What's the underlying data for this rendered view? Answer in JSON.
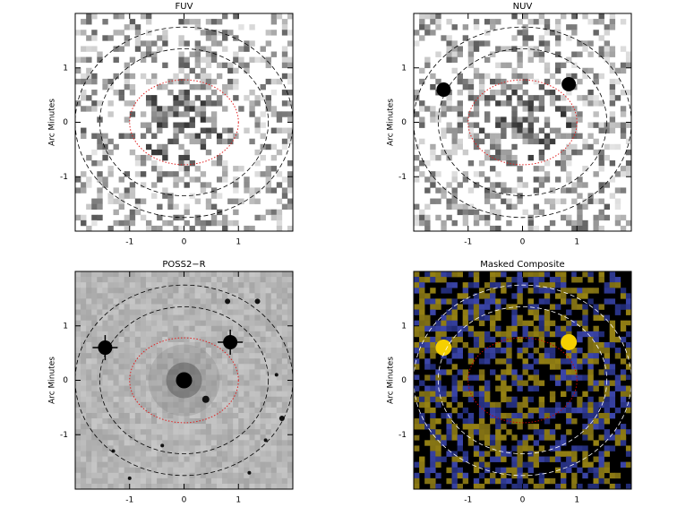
{
  "chart_data": [
    {
      "type": "image",
      "title": "FUV",
      "ylabel": "Arc Minutes",
      "xlim": [
        -2,
        2
      ],
      "ylim": [
        -2,
        2
      ],
      "xticks": [
        -1,
        0,
        1
      ],
      "yticks": [
        -1,
        0,
        1
      ]
    },
    {
      "type": "image",
      "title": "NUV",
      "ylabel": "Arc Minutes",
      "xlim": [
        -2,
        2
      ],
      "ylim": [
        -2,
        2
      ],
      "xticks": [
        -1,
        0,
        1
      ],
      "yticks": [
        -1,
        0,
        1
      ]
    },
    {
      "type": "image",
      "title": "POSS2−R",
      "ylabel": "Arc Minutes",
      "xlim": [
        -2,
        2
      ],
      "ylim": [
        -2,
        2
      ],
      "xticks": [
        -1,
        0,
        1
      ],
      "yticks": [
        -1,
        0,
        1
      ]
    },
    {
      "type": "image",
      "title": "Masked Composite",
      "ylabel": "Arc Minutes",
      "xlim": [
        -2,
        2
      ],
      "ylim": [
        -2,
        2
      ],
      "xticks": [
        -1,
        0,
        1
      ],
      "yticks": [
        -1,
        0,
        1
      ]
    }
  ]
}
